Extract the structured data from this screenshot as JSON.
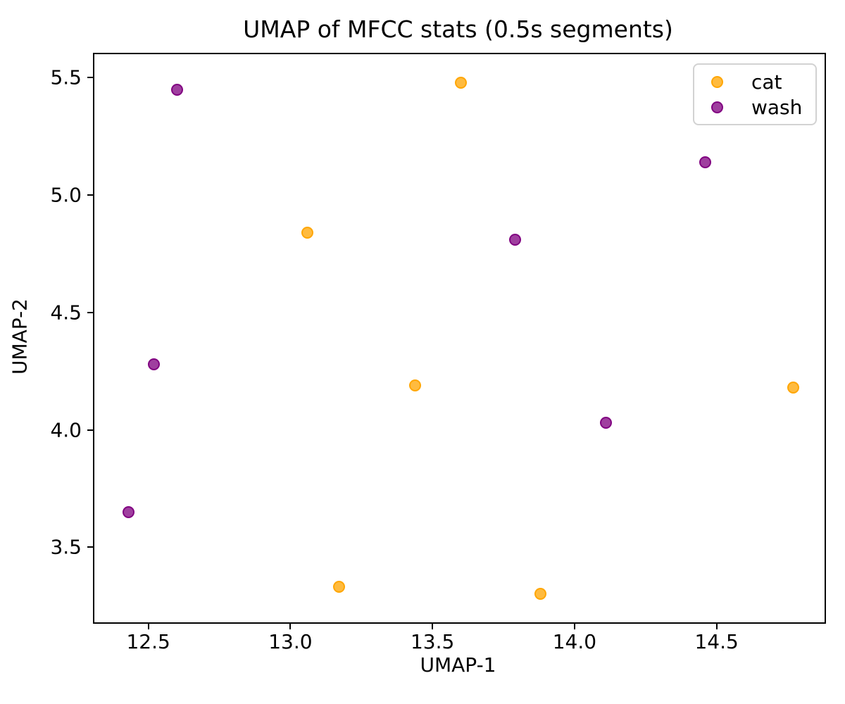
{
  "chart_data": {
    "type": "scatter",
    "title": "UMAP of MFCC stats (0.5s segments)",
    "xlabel": "UMAP-1",
    "ylabel": "UMAP-2",
    "xlim": [
      12.31,
      14.88
    ],
    "ylim": [
      3.18,
      5.6
    ],
    "xticks": [
      12.5,
      13.0,
      13.5,
      14.0,
      14.5
    ],
    "yticks": [
      3.5,
      4.0,
      4.5,
      5.0,
      5.5
    ],
    "grid": false,
    "legend_position": "upper right",
    "marker_alpha": 0.8,
    "series": [
      {
        "name": "cat",
        "color": "#FFA500",
        "points": [
          [
            13.6,
            5.48
          ],
          [
            13.06,
            4.84
          ],
          [
            13.44,
            4.19
          ],
          [
            14.77,
            4.18
          ],
          [
            13.17,
            3.33
          ],
          [
            13.88,
            3.3
          ]
        ]
      },
      {
        "name": "wash",
        "color": "#800080",
        "points": [
          [
            12.6,
            5.45
          ],
          [
            14.46,
            5.14
          ],
          [
            13.79,
            4.81
          ],
          [
            12.52,
            4.28
          ],
          [
            14.11,
            4.03
          ],
          [
            12.43,
            3.65
          ]
        ]
      }
    ]
  }
}
